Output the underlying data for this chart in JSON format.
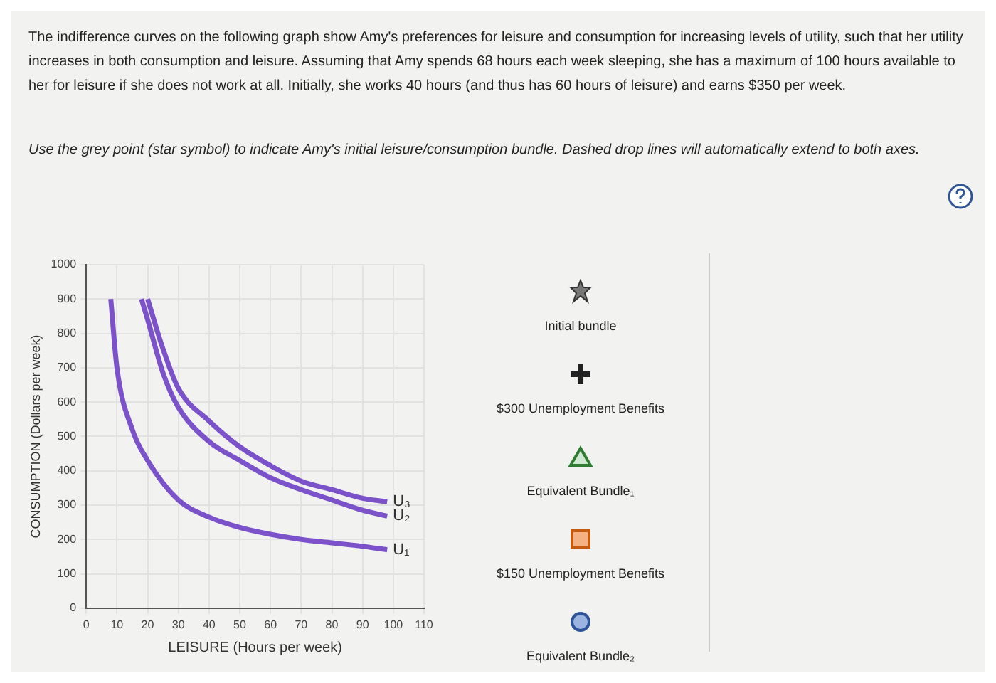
{
  "chart_data": {
    "type": "line",
    "title": "The indifference curves on the following graph show Amy's preferences for leisure and consumption for increasing levels of utility, such that her utility increases in both consumption and leisure. Assuming that Amy spends 68 hours each week sleeping, she has a maximum of 100 hours available to her for leisure if she does not work at all. Initially, she works 40 hours (and thus has 60 hours of leisure) and earns $350 per week.",
    "subtitle": "Use the grey point (star symbol) to indicate Amy's initial leisure/consumption bundle. Dashed drop lines will automatically extend to both axes.",
    "xlabel": "LEISURE (Hours per week)",
    "ylabel": "CONSUMPTION (Dollars per week)",
    "series": [
      {
        "name": "U₁",
        "color": "#7b52c9",
        "x": [
          8,
          10,
          15,
          20,
          30,
          40,
          50,
          60,
          70,
          80,
          90,
          98
        ],
        "values": [
          900,
          700,
          520,
          430,
          315,
          265,
          235,
          215,
          200,
          190,
          180,
          170
        ]
      },
      {
        "name": "U₂",
        "color": "#7b52c9",
        "x": [
          18,
          20,
          25,
          30,
          40,
          50,
          60,
          70,
          80,
          90,
          98
        ],
        "values": [
          900,
          840,
          685,
          585,
          485,
          430,
          380,
          345,
          315,
          285,
          268
        ]
      },
      {
        "name": "U₃",
        "color": "#7b52c9",
        "x": [
          20,
          25,
          30,
          40,
          50,
          60,
          70,
          80,
          90,
          98
        ],
        "values": [
          900,
          755,
          640,
          545,
          470,
          415,
          370,
          345,
          320,
          310
        ]
      }
    ],
    "xlim": [
      0,
      110
    ],
    "xticks": [
      0,
      10,
      20,
      30,
      40,
      50,
      60,
      70,
      80,
      90,
      100,
      110
    ],
    "ylim": [
      0,
      1000
    ],
    "yticks": [
      0,
      100,
      200,
      300,
      400,
      500,
      600,
      700,
      800,
      900,
      1000
    ],
    "grid": true,
    "legend": false,
    "marker": "none",
    "line_style": "solid",
    "annotations": [
      "Initial bundle",
      "$300 Unemployment Benefits",
      "Equivalent Bundle₁",
      "$150 Unemployment Benefits",
      "Equivalent Bundle₂"
    ]
  }
}
